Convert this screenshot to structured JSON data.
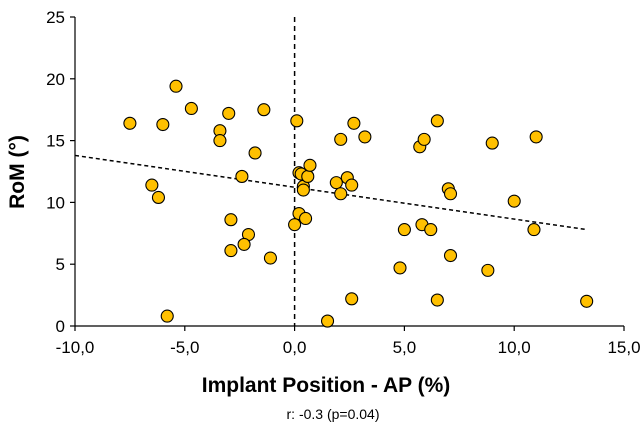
{
  "chart_data": {
    "type": "scatter",
    "title": "",
    "xlabel": "Implant Position - AP (%)",
    "ylabel": "RoM (°)",
    "footnote": "r: -0.3 (p=0.04)",
    "xlim": [
      -10,
      15
    ],
    "ylim": [
      0,
      25
    ],
    "xticks": [
      "-10,0",
      "-5,0",
      "0,0",
      "5,0",
      "10,0",
      "15,0"
    ],
    "yticks": [
      "0",
      "5",
      "10",
      "15",
      "20",
      "25"
    ],
    "grid": false,
    "legend": "none",
    "marker_color": "#FFC000",
    "marker_edge": "#000000",
    "vertical_reference_x": 0,
    "trendline": {
      "x": [
        -10,
        13.3
      ],
      "y": [
        13.8,
        7.8
      ]
    },
    "series": [
      {
        "values": [
          [
            -7.5,
            16.4
          ],
          [
            -6.0,
            16.3
          ],
          [
            -5.4,
            19.4
          ],
          [
            -4.7,
            17.6
          ],
          [
            -3.4,
            15.8
          ],
          [
            -3.4,
            15.0
          ],
          [
            -3.0,
            17.2
          ],
          [
            -1.4,
            17.5
          ],
          [
            -1.8,
            14.0
          ],
          [
            -2.4,
            12.1
          ],
          [
            -6.5,
            11.4
          ],
          [
            -6.2,
            10.4
          ],
          [
            -2.9,
            8.6
          ],
          [
            -2.1,
            7.4
          ],
          [
            -2.3,
            6.6
          ],
          [
            -2.9,
            6.1
          ],
          [
            -1.1,
            5.5
          ],
          [
            -5.8,
            0.8
          ],
          [
            0.1,
            16.6
          ],
          [
            0.2,
            12.4
          ],
          [
            0.3,
            12.3
          ],
          [
            0.4,
            11.3
          ],
          [
            0.6,
            12.1
          ],
          [
            0.7,
            13.0
          ],
          [
            0.4,
            11.0
          ],
          [
            0.2,
            9.1
          ],
          [
            0.5,
            8.7
          ],
          [
            0.0,
            8.2
          ],
          [
            1.5,
            0.4
          ],
          [
            1.9,
            11.6
          ],
          [
            2.1,
            10.7
          ],
          [
            2.4,
            12.0
          ],
          [
            2.6,
            11.4
          ],
          [
            2.1,
            15.1
          ],
          [
            2.7,
            16.4
          ],
          [
            3.2,
            15.3
          ],
          [
            2.6,
            2.2
          ],
          [
            4.8,
            4.7
          ],
          [
            5.0,
            7.8
          ],
          [
            5.7,
            14.5
          ],
          [
            5.9,
            15.1
          ],
          [
            6.5,
            16.6
          ],
          [
            5.8,
            8.2
          ],
          [
            6.2,
            7.8
          ],
          [
            7.0,
            11.1
          ],
          [
            7.1,
            10.7
          ],
          [
            7.1,
            5.7
          ],
          [
            6.5,
            2.1
          ],
          [
            8.8,
            4.5
          ],
          [
            9.0,
            14.8
          ],
          [
            10.0,
            10.1
          ],
          [
            10.9,
            7.8
          ],
          [
            11.0,
            15.3
          ],
          [
            13.3,
            2.0
          ]
        ]
      }
    ]
  }
}
